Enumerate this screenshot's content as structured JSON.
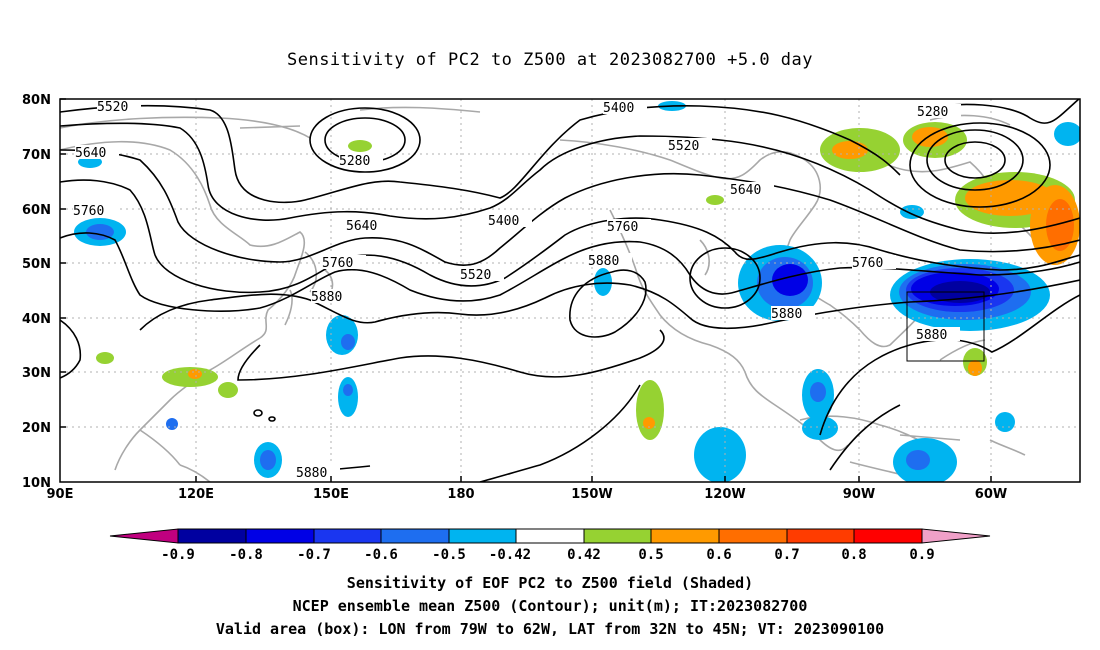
{
  "title": "Sensitivity of PC2 to Z500 at 2023082700 +5.0 day",
  "lat_labels": [
    "80N",
    "70N",
    "60N",
    "50N",
    "40N",
    "30N",
    "20N",
    "10N"
  ],
  "lon_labels": [
    "90E",
    "120E",
    "150E",
    "180",
    "150W",
    "120W",
    "90W",
    "60W"
  ],
  "contour_labels": [
    "5520",
    "5640",
    "5760",
    "5400",
    "5280",
    "5520",
    "5640",
    "5400",
    "5760",
    "5640",
    "5760",
    "5520",
    "5880",
    "5880",
    "5280",
    "5760",
    "5880",
    "5880"
  ],
  "colorbar": {
    "labels": [
      "-0.9",
      "-0.8",
      "-0.7",
      "-0.6",
      "-0.5",
      "-0.42",
      "0.42",
      "0.5",
      "0.6",
      "0.7",
      "0.8",
      "0.9"
    ],
    "colors": [
      "#c0007f",
      "#0000a0",
      "#0000e6",
      "#1a36f0",
      "#1e6ef0",
      "#00b4f0",
      "#ffffff",
      "#96d232",
      "#ff9a00",
      "#ff6e00",
      "#ff3c00",
      "#ff0000",
      "#f0a0c8"
    ]
  },
  "captions": [
    "Sensitivity of EOF PC2 to Z500 field (Shaded)",
    "NCEP ensemble mean Z500 (Contour); unit(m); IT:2023082700",
    "Valid area (box): LON from 79W to 62W, LAT from 32N to 45N; VT: 2023090100"
  ]
}
